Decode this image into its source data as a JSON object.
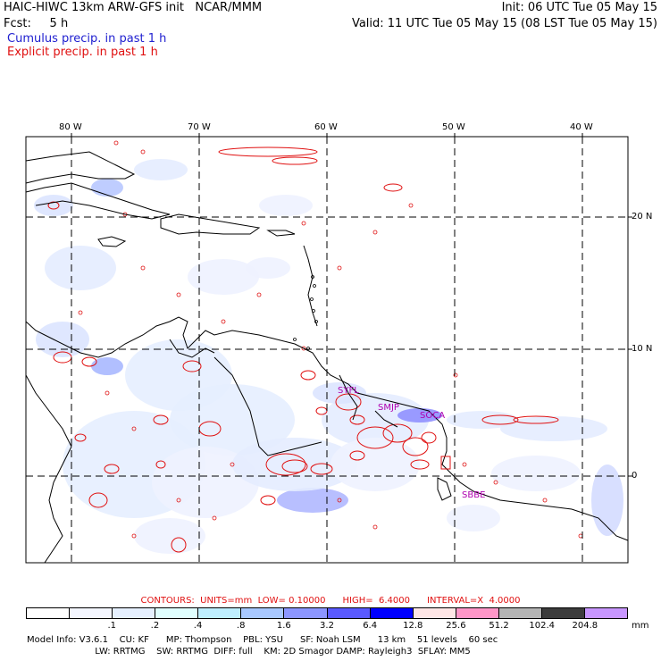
{
  "header": {
    "left_line1": "HAIC-HIWC 13km ARW-GFS init   NCAR/MMM",
    "left_line2": "Fcst:     5 h",
    "right_line1": "Init: 06 UTC Tue 05 May 15",
    "right_line2": "Valid: 11 UTC Tue 05 May 15 (08 LST Tue 05 May 15)",
    "cumulus_label": "Cumulus precip. in past 1 h",
    "explicit_label": "Explicit precip. in past 1 h"
  },
  "map": {
    "lon_labels": [
      "80 W",
      "70 W",
      "60 W",
      "50 W",
      "40 W"
    ],
    "lat_labels": [
      "20 N",
      "10 N",
      "0"
    ],
    "stations": [
      "SYFL",
      "SMJP",
      "SOCA",
      "SBBE"
    ],
    "colors": {
      "cumulus": "#8aa0ff",
      "explicit": "#e01010",
      "coast": "#000000"
    }
  },
  "contours": {
    "units_label": "CONTOURS:  UNITS=mm  LOW= 0.10000      HIGH=  6.4000      INTERVAL=X  4.0000"
  },
  "colorbar": {
    "ticks": [
      ".1",
      ".2",
      ".4",
      ".8",
      "1.6",
      "3.2",
      "6.4",
      "12.8",
      "25.6",
      "51.2",
      "102.4",
      "204.8"
    ],
    "unit": "mm",
    "colors": [
      "#ffffff",
      "#f4f6ff",
      "#e6f0ff",
      "#e0ffff",
      "#bfefff",
      "#a8c8ff",
      "#8c96ff",
      "#5a5aff",
      "#0000ff",
      "#ffe6e6",
      "#ff96c8",
      "#b4b4b4",
      "#3c3c3c",
      "#c896ff"
    ]
  },
  "model_info": {
    "line1": "Model Info: V3.6.1    CU: KF      MP: Thompson    PBL: YSU      SF: Noah LSM      13 km    51 levels    60 sec",
    "line2": "                        LW: RRTMG    SW: RRTMG  DIFF: full    KM: 2D Smagor DAMP: Rayleigh3  SFLAY: MM5"
  }
}
